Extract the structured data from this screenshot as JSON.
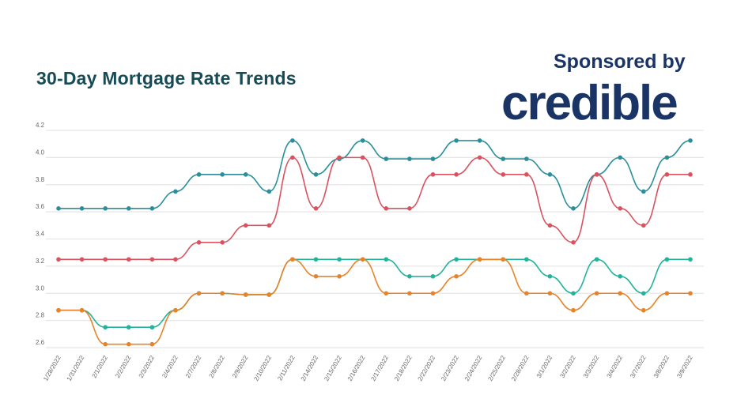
{
  "header": {
    "sponsor_text": "Sponsored by",
    "logo_text": "credible"
  },
  "colors": {
    "title": "#174b55",
    "logo": "#1b3466",
    "grid": "#e6e6e6"
  },
  "chart_data": {
    "type": "line",
    "title": "30-Day Mortgage Rate Trends",
    "xlabel": "",
    "ylabel": "",
    "ylim": [
      2.6,
      4.2
    ],
    "yticks": [
      "2.6",
      "2.8",
      "3.0",
      "3.2",
      "3.4",
      "3.6",
      "3.8",
      "4.0",
      "4.2"
    ],
    "grid": true,
    "legend": "none",
    "categories": [
      "1/28/2022",
      "1/31/2022",
      "2/1/2022",
      "2/2/2022",
      "2/3/2022",
      "2/4/2022",
      "2/7/2022",
      "2/8/2022",
      "2/9/2022",
      "2/10/2022",
      "2/11/2022",
      "2/14/2022",
      "2/15/2022",
      "2/16/2022",
      "2/17/2022",
      "2/18/2022",
      "2/22/2022",
      "2/23/2022",
      "2/24/2022",
      "2/25/2022",
      "2/28/2022",
      "3/1/2022",
      "3/2/2022",
      "3/3/2022",
      "3/4/2022",
      "3/7/2022",
      "3/8/2022",
      "3/9/2022"
    ],
    "series": [
      {
        "color": "#2a8f9a",
        "values": [
          3.625,
          3.625,
          3.625,
          3.625,
          3.625,
          3.75,
          3.875,
          3.875,
          3.875,
          3.75,
          4.125,
          3.875,
          3.99,
          4.125,
          3.99,
          3.99,
          3.99,
          4.125,
          4.125,
          3.99,
          3.99,
          3.875,
          3.625,
          3.875,
          4.0,
          3.75,
          4.0,
          4.125
        ]
      },
      {
        "color": "#d9525f",
        "values": [
          3.25,
          3.25,
          3.25,
          3.25,
          3.25,
          3.25,
          3.375,
          3.375,
          3.5,
          3.5,
          4.0,
          3.625,
          4.0,
          4.0,
          3.625,
          3.625,
          3.875,
          3.875,
          4.0,
          3.875,
          3.875,
          3.5,
          3.375,
          3.875,
          3.625,
          3.5,
          3.875,
          3.875
        ]
      },
      {
        "color": "#22b39a",
        "values": [
          2.875,
          2.875,
          2.75,
          2.75,
          2.75,
          2.875,
          3.0,
          3.0,
          2.99,
          2.99,
          3.25,
          3.25,
          3.25,
          3.25,
          3.25,
          3.125,
          3.125,
          3.25,
          3.25,
          3.25,
          3.25,
          3.125,
          3.0,
          3.25,
          3.125,
          3.0,
          3.25,
          3.25
        ]
      },
      {
        "color": "#e8832a",
        "values": [
          2.875,
          2.875,
          2.625,
          2.625,
          2.625,
          2.875,
          3.0,
          3.0,
          2.99,
          2.99,
          3.25,
          3.125,
          3.125,
          3.25,
          3.0,
          3.0,
          3.0,
          3.125,
          3.25,
          3.25,
          3.0,
          3.0,
          2.875,
          3.0,
          3.0,
          2.875,
          3.0,
          3.0
        ]
      }
    ]
  }
}
